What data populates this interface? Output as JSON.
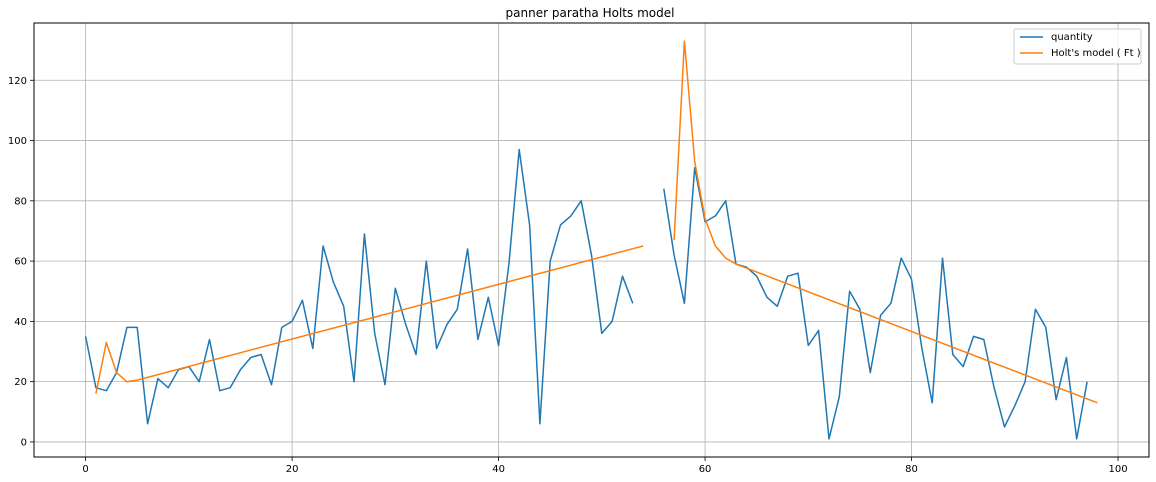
{
  "chart_data": {
    "type": "line",
    "title": "panner paratha Holts model",
    "xlabel": "",
    "ylabel": "",
    "xlim": [
      -5,
      103
    ],
    "ylim": [
      -5,
      139
    ],
    "x_ticks": [
      0,
      20,
      40,
      60,
      80,
      100
    ],
    "y_ticks": [
      0,
      20,
      40,
      60,
      80,
      100,
      120
    ],
    "grid": true,
    "legend_position": "top-right",
    "series": [
      {
        "name": "quantity",
        "color": "#1f77b4",
        "segments": [
          {
            "x": [
              0,
              1,
              2,
              3,
              4,
              5,
              6,
              7,
              8,
              9,
              10,
              11,
              12,
              13,
              14,
              15,
              16,
              17,
              18,
              19,
              20,
              21,
              22,
              23,
              24,
              25,
              26,
              27,
              28,
              29,
              30,
              31,
              32,
              33,
              34,
              35,
              36,
              37,
              38,
              39,
              40,
              41,
              42,
              43,
              44,
              45,
              46,
              47,
              48,
              49,
              50,
              51,
              52,
              53
            ],
            "y": [
              35,
              18,
              17,
              23,
              38,
              38,
              6,
              21,
              18,
              24,
              25,
              20,
              34,
              17,
              18,
              24,
              28,
              29,
              19,
              38,
              40,
              47,
              31,
              65,
              53,
              45,
              20,
              69,
              36,
              19,
              51,
              39,
              29,
              60,
              31,
              39,
              44,
              64,
              34,
              48,
              32,
              59,
              97,
              72,
              6,
              60,
              72,
              75,
              80,
              62,
              36,
              40,
              55,
              46
            ]
          },
          {
            "x": [
              56,
              57,
              58,
              59,
              60,
              61,
              62,
              63,
              64,
              65,
              66,
              67,
              68,
              69,
              70,
              71,
              72,
              73,
              74,
              75,
              76,
              77,
              78,
              79,
              80,
              81,
              82,
              83,
              84,
              85,
              86,
              87,
              88,
              89,
              90,
              91,
              92,
              93,
              94,
              95,
              96,
              97
            ],
            "y": [
              84,
              62,
              46,
              91,
              73,
              75,
              80,
              59,
              58,
              55,
              48,
              45,
              55,
              56,
              32,
              37,
              1,
              15,
              50,
              44,
              23,
              42,
              46,
              61,
              54,
              31,
              13,
              61,
              29,
              25,
              35,
              34,
              18,
              5,
              12,
              20,
              44,
              38,
              14,
              28,
              1,
              20
            ]
          }
        ]
      },
      {
        "name": "Holt's model ( Ft )",
        "color": "#ff7f0e",
        "segments": [
          {
            "x": [
              1,
              2,
              3,
              4,
              5,
              54
            ],
            "y": [
              16,
              33,
              23,
              20,
              20.5,
              65
            ]
          },
          {
            "x": [
              57,
              58,
              59,
              60,
              61,
              62,
              63,
              98
            ],
            "y": [
              67,
              133,
              93,
              74,
              65,
              61,
              59,
              13
            ]
          }
        ]
      }
    ]
  }
}
